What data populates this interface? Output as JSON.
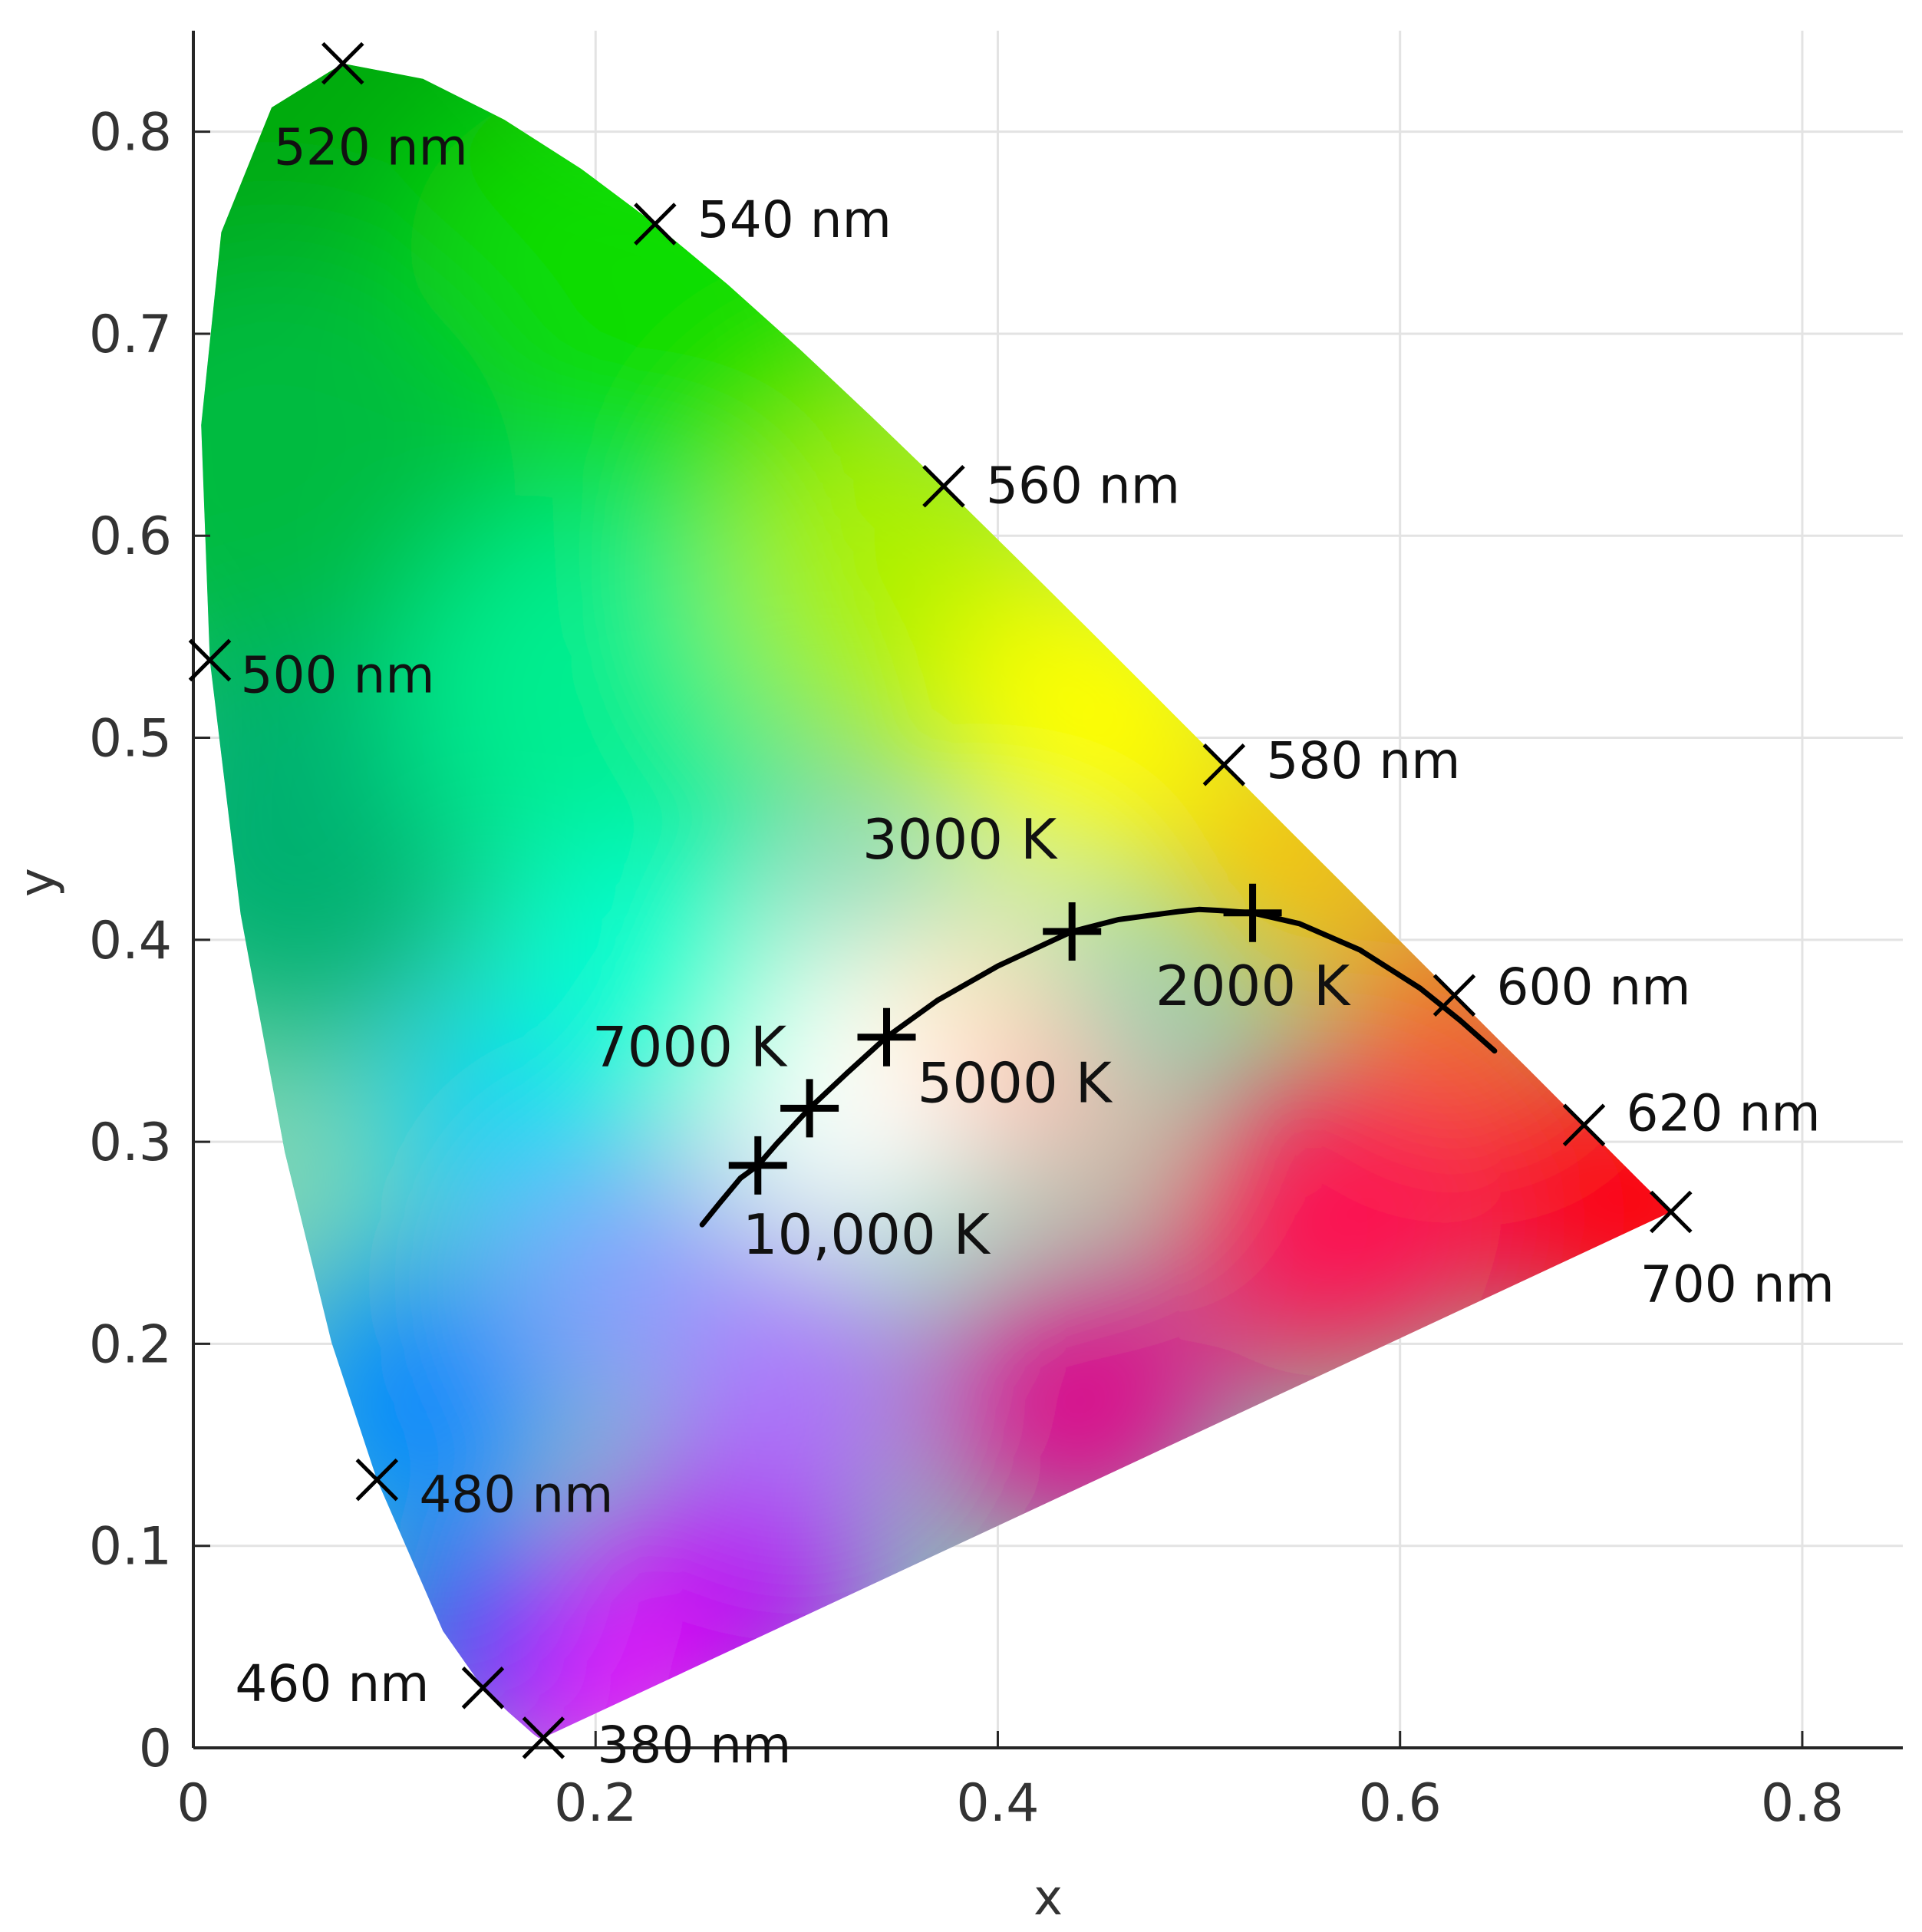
{
  "chart_data": {
    "type": "scatter",
    "title": "",
    "xlabel": "x",
    "ylabel": "y",
    "xlim": [
      0,
      0.85
    ],
    "ylim": [
      0,
      0.85
    ],
    "xticks": [
      0,
      0.2,
      0.4,
      0.6,
      0.8
    ],
    "yticks": [
      0,
      0.1,
      0.2,
      0.3,
      0.4,
      0.5,
      0.6,
      0.7,
      0.8
    ],
    "xtick_labels": [
      "0",
      "0.2",
      "0.4",
      "0.6",
      "0.8"
    ],
    "ytick_labels": [
      "0",
      "0.1",
      "0.2",
      "0.3",
      "0.4",
      "0.5",
      "0.6",
      "0.7",
      "0.8"
    ],
    "grid": true,
    "spectral_locus": [
      [
        0.1741,
        0.005
      ],
      [
        0.1738,
        0.0049
      ],
      [
        0.1736,
        0.005
      ],
      [
        0.1733,
        0.0048
      ],
      [
        0.1726,
        0.0048
      ],
      [
        0.1714,
        0.0051
      ],
      [
        0.1689,
        0.0069
      ],
      [
        0.1644,
        0.0109
      ],
      [
        0.1566,
        0.0177
      ],
      [
        0.144,
        0.0297
      ],
      [
        0.1241,
        0.0578
      ],
      [
        0.0913,
        0.1327
      ],
      [
        0.0687,
        0.2007
      ],
      [
        0.0454,
        0.295
      ],
      [
        0.0235,
        0.4127
      ],
      [
        0.0082,
        0.5384
      ],
      [
        0.0039,
        0.6548
      ],
      [
        0.0139,
        0.7502
      ],
      [
        0.0389,
        0.812
      ],
      [
        0.0743,
        0.8338
      ],
      [
        0.1142,
        0.8262
      ],
      [
        0.1547,
        0.8059
      ],
      [
        0.1929,
        0.7816
      ],
      [
        0.2296,
        0.7543
      ],
      [
        0.2658,
        0.7243
      ],
      [
        0.3016,
        0.6923
      ],
      [
        0.3373,
        0.6589
      ],
      [
        0.3731,
        0.6245
      ],
      [
        0.4087,
        0.5896
      ],
      [
        0.4441,
        0.5547
      ],
      [
        0.4788,
        0.5202
      ],
      [
        0.5125,
        0.4866
      ],
      [
        0.5448,
        0.4544
      ],
      [
        0.5752,
        0.4242
      ],
      [
        0.6029,
        0.3965
      ],
      [
        0.627,
        0.3725
      ],
      [
        0.6482,
        0.3514
      ],
      [
        0.6658,
        0.334
      ],
      [
        0.6801,
        0.3197
      ],
      [
        0.6915,
        0.3083
      ],
      [
        0.7006,
        0.2993
      ],
      [
        0.7079,
        0.292
      ],
      [
        0.714,
        0.2859
      ],
      [
        0.719,
        0.2809
      ],
      [
        0.723,
        0.277
      ],
      [
        0.726,
        0.274
      ],
      [
        0.7283,
        0.2717
      ],
      [
        0.73,
        0.27
      ],
      [
        0.7311,
        0.2689
      ],
      [
        0.732,
        0.268
      ],
      [
        0.7347,
        0.2653
      ]
    ],
    "wavelength_markers": [
      {
        "label": "380 nm",
        "x": 0.1741,
        "y": 0.005
      },
      {
        "label": "460 nm",
        "x": 0.144,
        "y": 0.0297
      },
      {
        "label": "480 nm",
        "x": 0.0913,
        "y": 0.1327
      },
      {
        "label": "500 nm",
        "x": 0.0082,
        "y": 0.5384
      },
      {
        "label": "520 nm",
        "x": 0.0743,
        "y": 0.8338
      },
      {
        "label": "540 nm",
        "x": 0.2296,
        "y": 0.7543
      },
      {
        "label": "560 nm",
        "x": 0.3731,
        "y": 0.6245
      },
      {
        "label": "580 nm",
        "x": 0.5125,
        "y": 0.4866
      },
      {
        "label": "600 nm",
        "x": 0.627,
        "y": 0.3725
      },
      {
        "label": "620 nm",
        "x": 0.6915,
        "y": 0.3083
      },
      {
        "label": "700 nm",
        "x": 0.7347,
        "y": 0.2653
      }
    ],
    "planckian_locus": [
      [
        0.253,
        0.259
      ],
      [
        0.262,
        0.27
      ],
      [
        0.272,
        0.282
      ],
      [
        0.2807,
        0.2883
      ],
      [
        0.29,
        0.299
      ],
      [
        0.3064,
        0.3166
      ],
      [
        0.325,
        0.334
      ],
      [
        0.3447,
        0.3518
      ],
      [
        0.37,
        0.37
      ],
      [
        0.4,
        0.387
      ],
      [
        0.4369,
        0.4041
      ],
      [
        0.46,
        0.41
      ],
      [
        0.49,
        0.414
      ],
      [
        0.5,
        0.415
      ],
      [
        0.51,
        0.4145
      ],
      [
        0.5267,
        0.4133
      ],
      [
        0.55,
        0.408
      ],
      [
        0.58,
        0.395
      ],
      [
        0.61,
        0.376
      ],
      [
        0.63,
        0.36
      ],
      [
        0.647,
        0.345
      ]
    ],
    "cct_markers": [
      {
        "label": "10,000 K",
        "x": 0.2807,
        "y": 0.2883
      },
      {
        "label": "7000 K",
        "x": 0.3064,
        "y": 0.3166
      },
      {
        "label": "5000 K",
        "x": 0.3447,
        "y": 0.3518
      },
      {
        "label": "3000 K",
        "x": 0.4369,
        "y": 0.4041
      },
      {
        "label": "2000 K",
        "x": 0.5267,
        "y": 0.4133
      }
    ]
  }
}
